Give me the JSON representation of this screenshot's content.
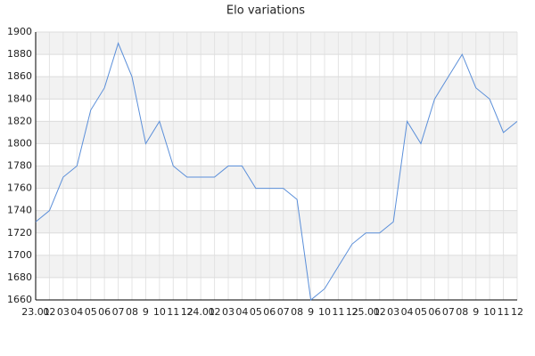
{
  "chart_data": {
    "type": "line",
    "title": "Elo variations",
    "categories": [
      "23.01",
      "02",
      "03",
      "04",
      "05",
      "06",
      "07",
      "08",
      "9",
      "10",
      "11",
      "12",
      "24.01",
      "02",
      "03",
      "04",
      "05",
      "06",
      "07",
      "08",
      "9",
      "10",
      "11",
      "12",
      "25.01",
      "02",
      "03",
      "04",
      "05",
      "06",
      "07",
      "08",
      "9",
      "10",
      "11",
      "12"
    ],
    "values": [
      1730,
      1740,
      1770,
      1780,
      1830,
      1850,
      1890,
      1860,
      1800,
      1820,
      1780,
      1770,
      1770,
      1770,
      1780,
      1780,
      1760,
      1760,
      1760,
      1750,
      1660,
      1670,
      1690,
      1710,
      1720,
      1720,
      1730,
      1820,
      1800,
      1840,
      1860,
      1880,
      1850,
      1840,
      1810,
      1820
    ],
    "color": "#5b8fd9",
    "ylim": [
      1660,
      1900
    ],
    "yticks": [
      1660,
      1680,
      1700,
      1720,
      1740,
      1760,
      1780,
      1800,
      1820,
      1840,
      1860,
      1880,
      1900
    ],
    "grid": true
  }
}
